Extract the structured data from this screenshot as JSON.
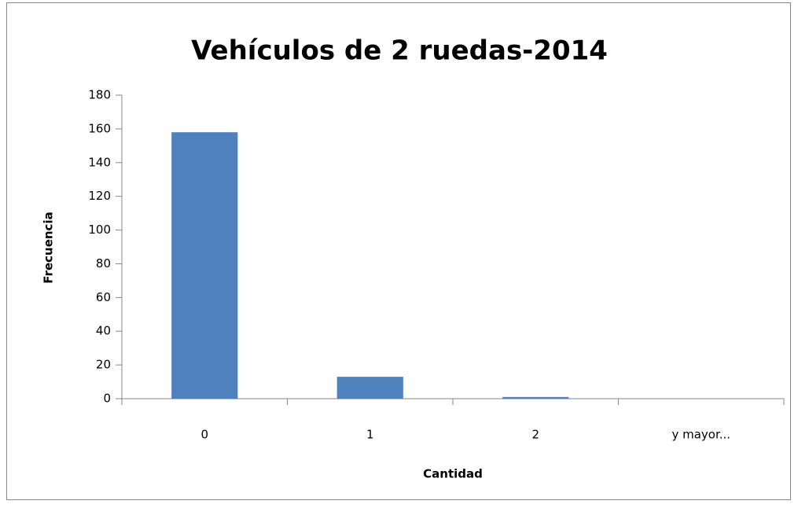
{
  "chart_data": {
    "type": "bar",
    "title": "Vehículos de 2 ruedas-2014",
    "x_label": "Cantidad",
    "y_label": "Frecuencia",
    "categories": [
      "0",
      "1",
      "2",
      "y mayor..."
    ],
    "values": [
      158,
      13,
      1,
      0
    ],
    "color": "#4f81bd",
    "ylim": [
      0,
      180
    ],
    "yticks": [
      0,
      20,
      40,
      60,
      80,
      100,
      120,
      140,
      160,
      180
    ],
    "grid": false
  }
}
